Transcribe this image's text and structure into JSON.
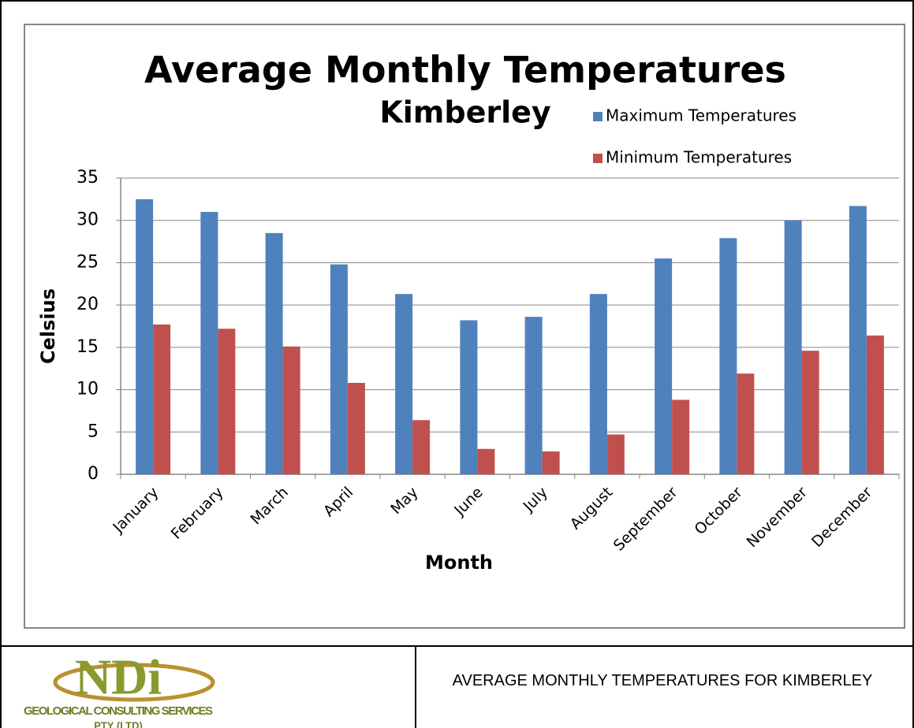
{
  "chart_data": {
    "type": "bar",
    "title": "Average Monthly Temperatures",
    "subtitle": "Kimberley",
    "x_label": "Month",
    "y_label": "Celsius",
    "categories": [
      "January",
      "February",
      "March",
      "April",
      "May",
      "June",
      "July",
      "August",
      "September",
      "October",
      "November",
      "December"
    ],
    "series": [
      {
        "name": "Maximum Temperatures",
        "color": "#4f81bd",
        "values": [
          32.5,
          31,
          28.5,
          24.8,
          21.3,
          18.2,
          18.6,
          21.3,
          25.5,
          27.9,
          30,
          31.7
        ]
      },
      {
        "name": "Minimum Temperatures",
        "color": "#c0504d",
        "values": [
          17.7,
          17.2,
          15.1,
          10.8,
          6.4,
          3.0,
          2.7,
          4.7,
          8.8,
          11.9,
          14.6,
          16.4
        ]
      }
    ],
    "ylim": [
      0,
      35
    ],
    "yticks": [
      0,
      5,
      10,
      15,
      20,
      25,
      30,
      35
    ],
    "grid": true,
    "legend": "top-right"
  },
  "logo": {
    "mark": "NDi",
    "company": "GEOLOGICAL CONSULTING SERVICES",
    "suffix": "PTY (LTD)"
  },
  "caption": "AVERAGE MONTHLY TEMPERATURES FOR KIMBERLEY"
}
